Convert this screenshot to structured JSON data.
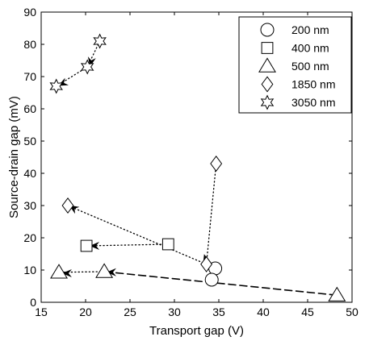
{
  "chart_data": {
    "type": "scatter",
    "xlabel": "Transport gap (V)",
    "ylabel": "Source-drain gap (mV)",
    "xlim": [
      15,
      50
    ],
    "ylim": [
      0,
      90
    ],
    "xticks": [
      15,
      20,
      25,
      30,
      35,
      40,
      45,
      50
    ],
    "yticks": [
      0,
      10,
      20,
      30,
      40,
      50,
      60,
      70,
      80,
      90
    ],
    "grid": false,
    "legend_position": "top-right",
    "series": [
      {
        "name": "200 nm",
        "marker": "circle",
        "points": [
          [
            34.6,
            10.5
          ],
          [
            34.2,
            7.0
          ]
        ]
      },
      {
        "name": "400 nm",
        "marker": "square",
        "points": [
          [
            29.3,
            18.0
          ],
          [
            20.1,
            17.5
          ]
        ]
      },
      {
        "name": "500 nm",
        "marker": "triangle",
        "points": [
          [
            48.3,
            2.2
          ],
          [
            22.1,
            9.5
          ],
          [
            17.0,
            9.3
          ]
        ]
      },
      {
        "name": "1850 nm",
        "marker": "diamond",
        "points": [
          [
            34.7,
            43.0
          ],
          [
            33.6,
            11.8
          ],
          [
            18.0,
            30.0
          ]
        ]
      },
      {
        "name": "3050 nm",
        "marker": "star6",
        "points": [
          [
            21.6,
            81.0
          ],
          [
            20.2,
            73.0
          ],
          [
            16.7,
            67.0
          ]
        ]
      }
    ],
    "connectors": [
      {
        "style": "dashed",
        "from": [
          48.3,
          2.2
        ],
        "to": [
          22.1,
          9.5
        ]
      },
      {
        "style": "dotted",
        "from": [
          22.1,
          9.5
        ],
        "to": [
          17.0,
          9.3
        ]
      },
      {
        "style": "dotted",
        "from": [
          29.3,
          18.0
        ],
        "to": [
          20.1,
          17.5
        ]
      },
      {
        "style": "dotted",
        "from": [
          34.7,
          43.0
        ],
        "to": [
          33.6,
          11.8
        ]
      },
      {
        "style": "dotted",
        "from": [
          33.6,
          11.8
        ],
        "to": [
          18.0,
          30.0
        ]
      },
      {
        "style": "dotted",
        "from": [
          34.6,
          10.5
        ],
        "to": [
          34.2,
          7.0
        ]
      },
      {
        "style": "dotted",
        "from": [
          21.6,
          81.0
        ],
        "to": [
          20.2,
          73.0
        ]
      },
      {
        "style": "dotted",
        "from": [
          20.2,
          73.0
        ],
        "to": [
          16.7,
          67.0
        ]
      }
    ],
    "arrows": [
      {
        "at": [
          22.9,
          9.3
        ],
        "dir": [
          -1.0,
          0.0
        ]
      },
      {
        "at": [
          17.9,
          9.0
        ],
        "dir": [
          -1.0,
          0.0
        ]
      },
      {
        "at": [
          21.0,
          17.5
        ],
        "dir": [
          -1.0,
          0.0
        ]
      },
      {
        "at": [
          18.6,
          29.3
        ],
        "dir": [
          -0.8,
          0.5
        ]
      },
      {
        "at": [
          33.5,
          13.5
        ],
        "dir": [
          -0.3,
          1.0
        ]
      },
      {
        "at": [
          34.4,
          9.1
        ],
        "dir": [
          -0.2,
          -1.0
        ]
      },
      {
        "at": [
          20.6,
          74.5
        ],
        "dir": [
          -0.2,
          -1.0
        ]
      },
      {
        "at": [
          17.4,
          67.8
        ],
        "dir": [
          -0.8,
          -0.4
        ]
      }
    ],
    "colors": {
      "axis": "#000000",
      "marker_stroke": "#000000",
      "marker_fill": "#ffffff",
      "background": "#ffffff"
    }
  }
}
